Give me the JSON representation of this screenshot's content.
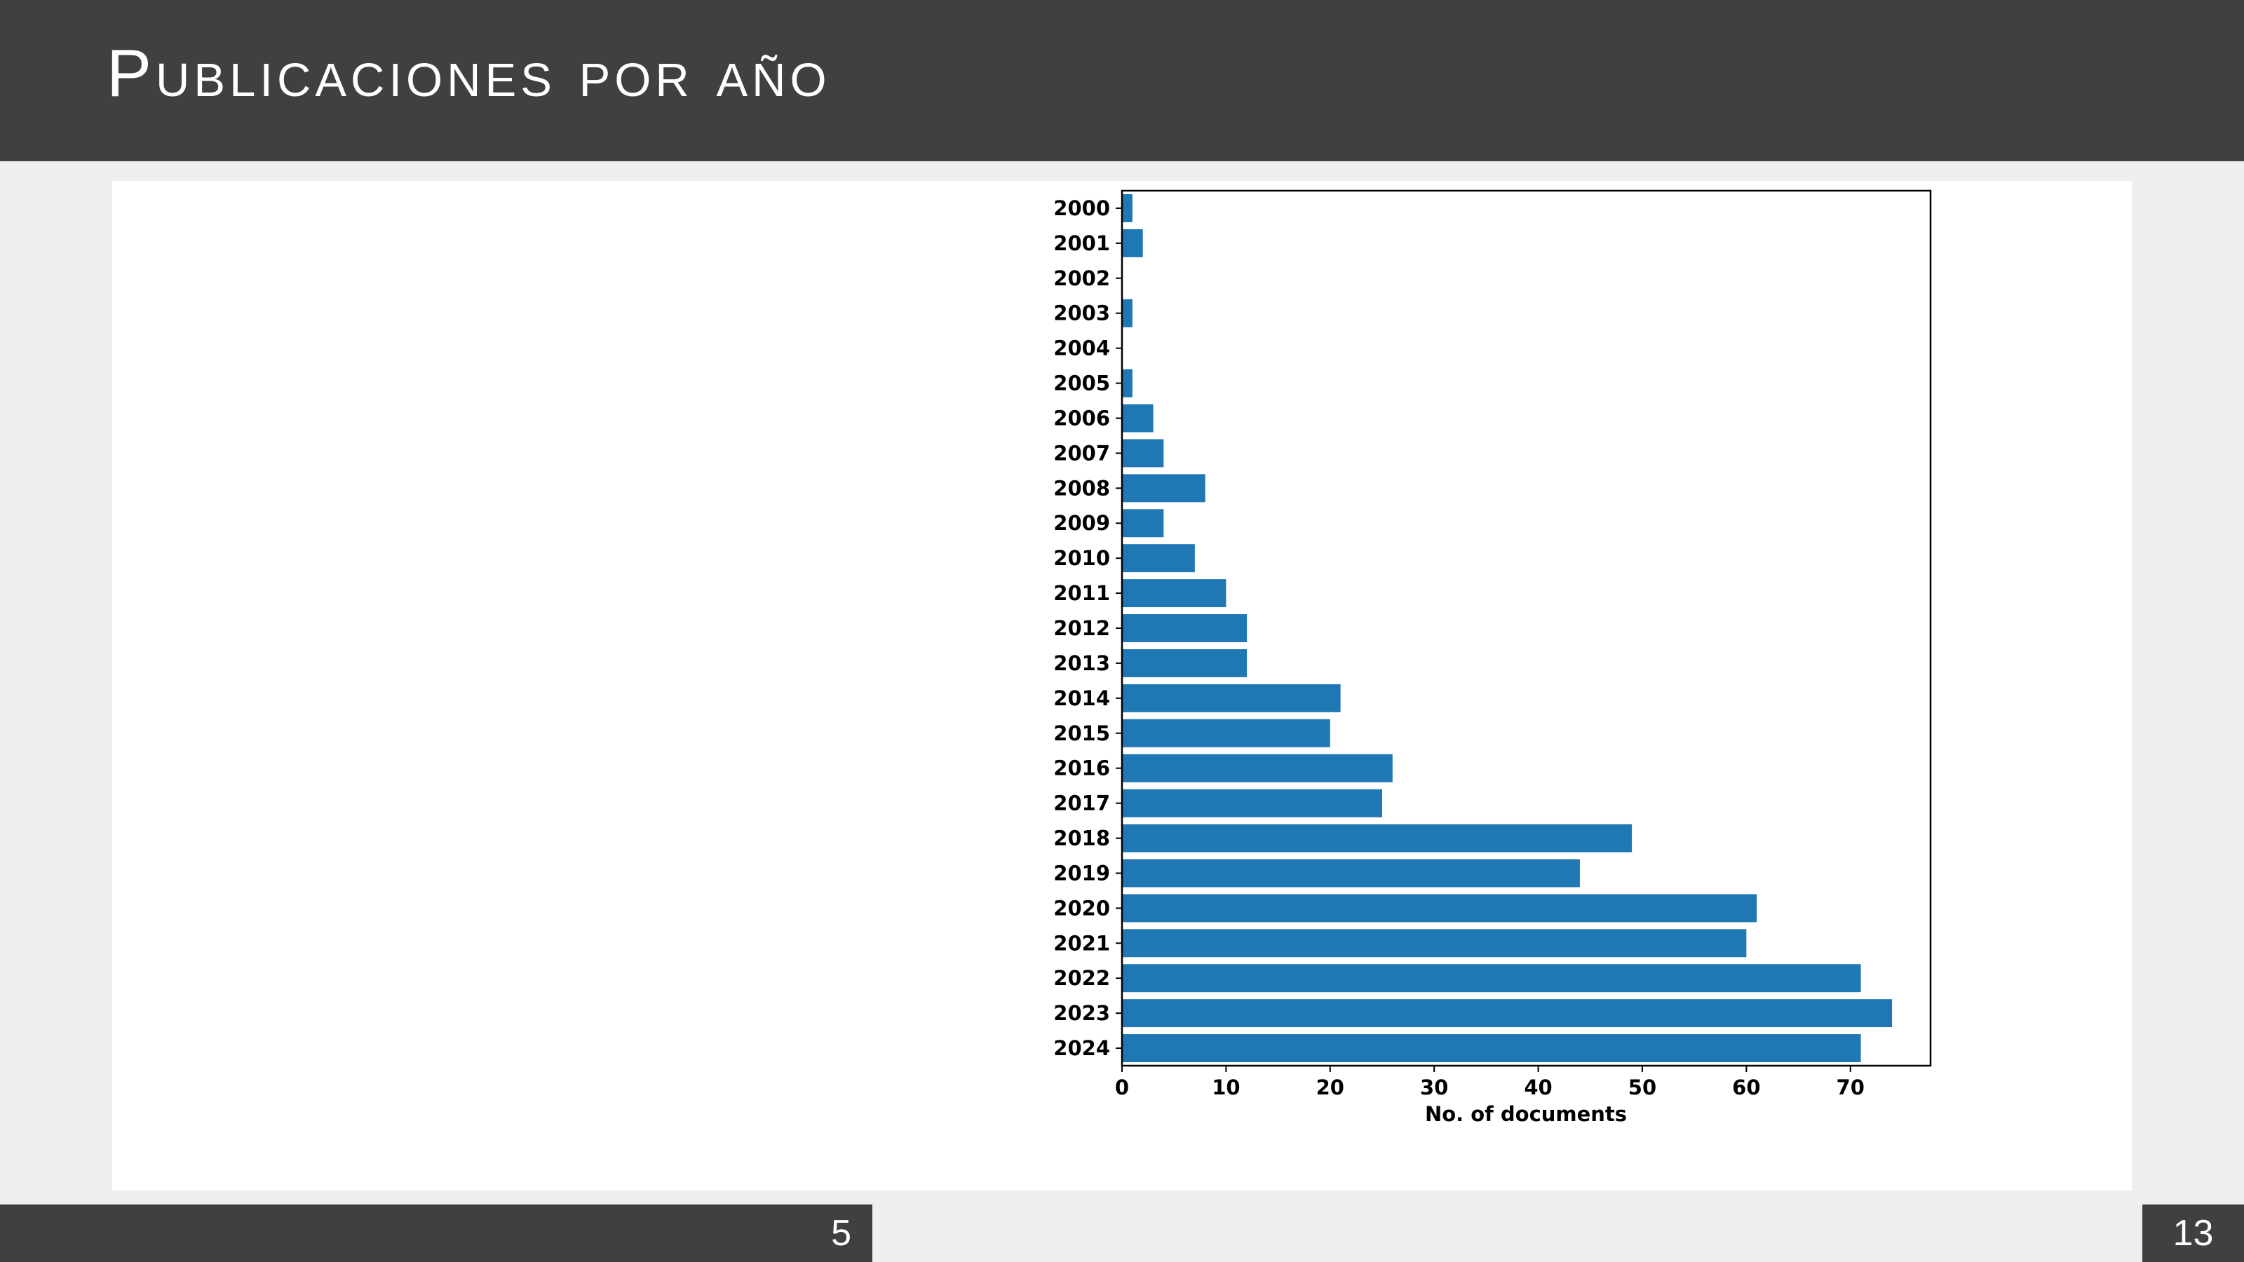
{
  "slide": {
    "title": "Publicaciones por año",
    "footer_left_number": "5",
    "footer_right_number": "13"
  },
  "chart_data": {
    "type": "bar",
    "orientation": "horizontal",
    "categories": [
      "2000",
      "2001",
      "2002",
      "2003",
      "2004",
      "2005",
      "2006",
      "2007",
      "2008",
      "2009",
      "2010",
      "2011",
      "2012",
      "2013",
      "2014",
      "2015",
      "2016",
      "2017",
      "2018",
      "2019",
      "2020",
      "2021",
      "2022",
      "2023",
      "2024"
    ],
    "values": [
      1,
      2,
      0,
      1,
      0,
      1,
      3,
      4,
      8,
      4,
      7,
      10,
      12,
      12,
      21,
      20,
      26,
      25,
      49,
      44,
      61,
      60,
      71,
      74,
      71
    ],
    "xlabel": "No. of documents",
    "ylabel": "",
    "xlim": [
      0,
      77.7
    ],
    "xticks": [
      0,
      10,
      20,
      30,
      40,
      50,
      60,
      70
    ],
    "bar_color": "#1f77b4",
    "grid": false
  },
  "colors": {
    "header": "#404040",
    "background": "#efefef",
    "panel": "#ffffff"
  }
}
